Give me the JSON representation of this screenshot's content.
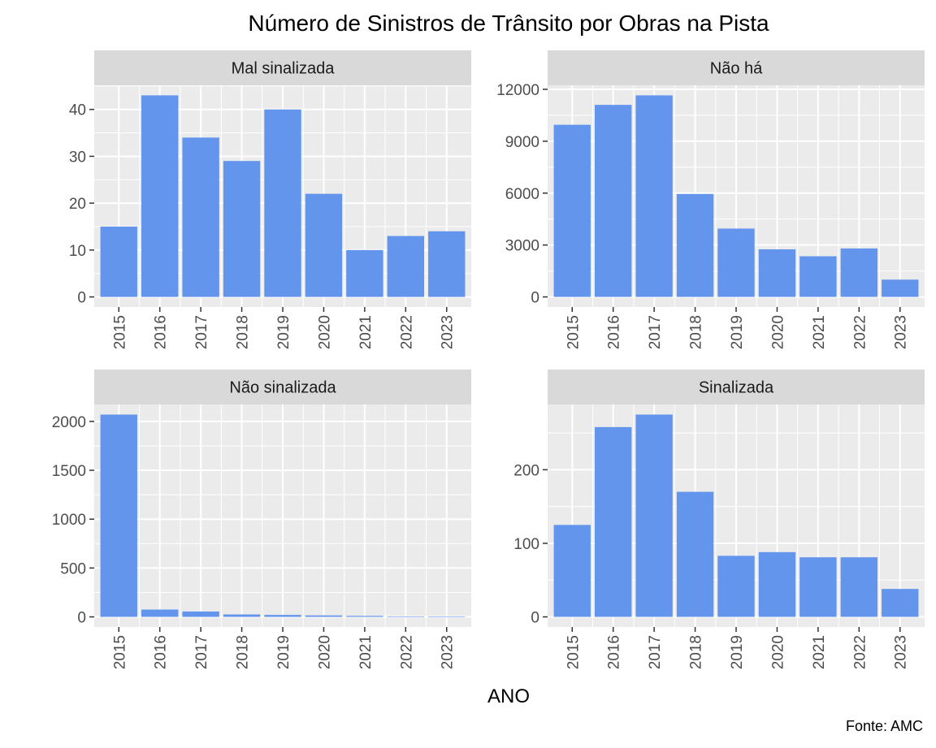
{
  "chart": {
    "title": "Número de Sinistros de Trânsito por Obras na Pista",
    "xlabel": "ANO",
    "caption": "Fonte: AMC"
  },
  "colors": {
    "bar": "#6495ED",
    "panel_bg": "#EBEBEB",
    "strip_bg": "#D9D9D9",
    "grid": "#FFFFFF"
  },
  "chart_data": [
    {
      "type": "bar",
      "title": "Mal sinalizada",
      "categories": [
        "2015",
        "2016",
        "2017",
        "2018",
        "2019",
        "2020",
        "2021",
        "2022",
        "2023"
      ],
      "values": [
        15,
        43,
        34,
        29,
        40,
        22,
        10,
        13,
        14
      ],
      "yticks": [
        0,
        10,
        20,
        30,
        40
      ],
      "ylim": [
        -2.15,
        45.15
      ],
      "grid": true
    },
    {
      "type": "bar",
      "title": "Não há",
      "categories": [
        "2015",
        "2016",
        "2017",
        "2018",
        "2019",
        "2020",
        "2021",
        "2022",
        "2023"
      ],
      "values": [
        9950,
        11100,
        11650,
        5950,
        3950,
        2750,
        2350,
        2800,
        1000
      ],
      "yticks": [
        0,
        3000,
        6000,
        9000,
        12000
      ],
      "ylim": [
        -583,
        12233
      ],
      "grid": true
    },
    {
      "type": "bar",
      "title": "Não sinalizada",
      "categories": [
        "2015",
        "2016",
        "2017",
        "2018",
        "2019",
        "2020",
        "2021",
        "2022",
        "2023"
      ],
      "values": [
        2070,
        75,
        55,
        25,
        20,
        15,
        10,
        2,
        1
      ],
      "yticks": [
        0,
        500,
        1000,
        1500,
        2000
      ],
      "ylim": [
        -103.5,
        2173.5
      ],
      "grid": true
    },
    {
      "type": "bar",
      "title": "Sinalizada",
      "categories": [
        "2015",
        "2016",
        "2017",
        "2018",
        "2019",
        "2020",
        "2021",
        "2022",
        "2023"
      ],
      "values": [
        125,
        258,
        275,
        170,
        83,
        88,
        81,
        81,
        38
      ],
      "yticks": [
        0,
        100,
        200
      ],
      "ylim": [
        -13.75,
        288.75
      ],
      "grid": true
    }
  ]
}
